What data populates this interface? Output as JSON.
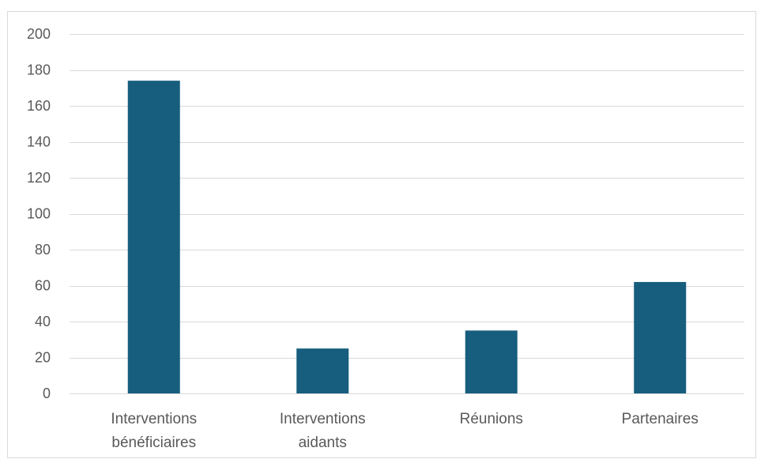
{
  "chart_data": {
    "type": "bar",
    "title": "",
    "xlabel": "",
    "ylabel": "",
    "categories": [
      [
        "Interventions",
        "bénéficiaires"
      ],
      [
        "Interventions",
        "aidants"
      ],
      [
        "Réunions"
      ],
      [
        "Partenaires"
      ]
    ],
    "values": [
      174,
      25,
      35,
      62
    ],
    "ylim": [
      0,
      200
    ],
    "yticks": [
      0,
      20,
      40,
      60,
      80,
      100,
      120,
      140,
      160,
      180,
      200
    ],
    "grid": true,
    "legend": "none",
    "bar_color": "#175e7e",
    "gridline_color": "#d9d9d9",
    "label_color": "#595959"
  }
}
